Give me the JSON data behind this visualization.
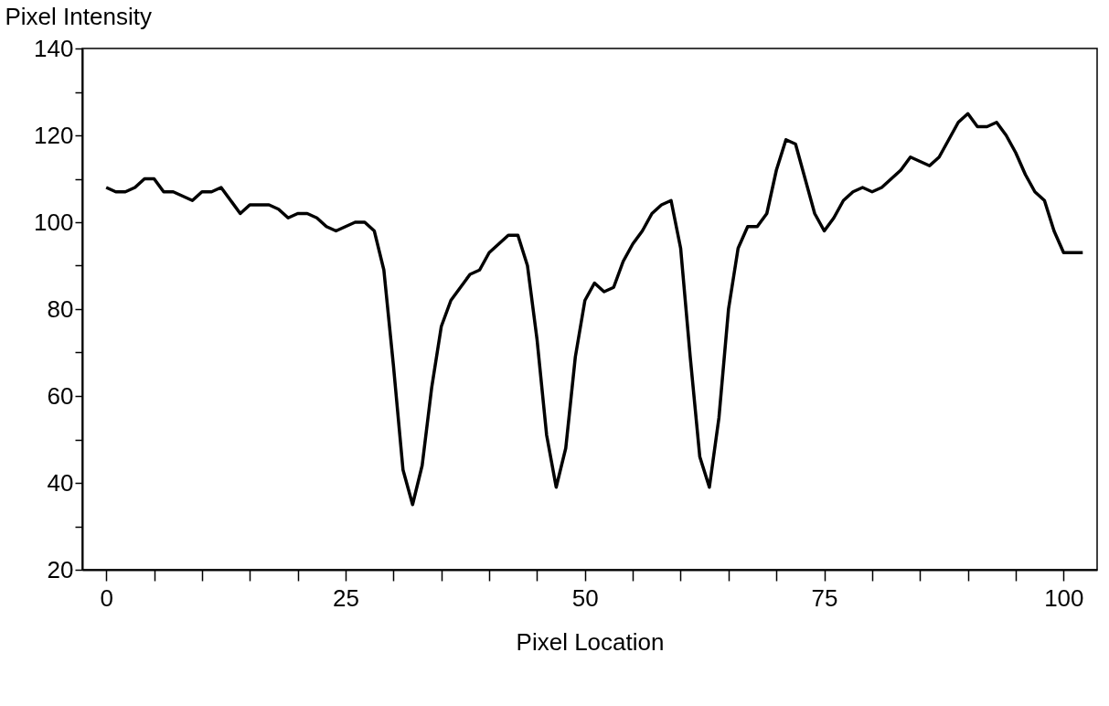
{
  "chart_data": {
    "type": "line",
    "xlabel": "Pixel Location",
    "ylabel": "Pixel Intensity",
    "x": [
      0,
      1,
      2,
      3,
      4,
      5,
      6,
      7,
      8,
      9,
      10,
      11,
      12,
      13,
      14,
      15,
      16,
      17,
      18,
      19,
      20,
      21,
      22,
      23,
      24,
      25,
      26,
      27,
      28,
      29,
      30,
      31,
      32,
      33,
      34,
      35,
      36,
      37,
      38,
      39,
      40,
      41,
      42,
      43,
      44,
      45,
      46,
      47,
      48,
      49,
      50,
      51,
      52,
      53,
      54,
      55,
      56,
      57,
      58,
      59,
      60,
      61,
      62,
      63,
      64,
      65,
      66,
      67,
      68,
      69,
      70,
      71,
      72,
      73,
      74,
      75,
      76,
      77,
      78,
      79,
      80,
      81,
      82,
      83,
      84,
      85,
      86,
      87,
      88,
      89,
      90,
      91,
      92,
      93,
      94,
      95,
      96,
      97,
      98,
      99,
      100,
      101,
      102
    ],
    "series": [
      {
        "color": "#000000",
        "values": [
          108,
          107,
          107,
          108,
          110,
          110,
          107,
          107,
          106,
          105,
          107,
          107,
          108,
          105,
          102,
          104,
          104,
          104,
          103,
          101,
          102,
          102,
          101,
          99,
          98,
          99,
          100,
          100,
          98,
          89,
          67,
          43,
          35,
          44,
          62,
          76,
          82,
          85,
          88,
          89,
          93,
          95,
          97,
          97,
          90,
          73,
          51,
          39,
          48,
          69,
          82,
          86,
          84,
          85,
          91,
          95,
          98,
          102,
          104,
          105,
          94,
          69,
          46,
          39,
          55,
          80,
          94,
          99,
          99,
          102,
          112,
          119,
          118,
          110,
          102,
          98,
          101,
          105,
          107,
          108,
          107,
          108,
          110,
          112,
          115,
          114,
          113,
          115,
          119,
          123,
          125,
          122,
          122,
          123,
          120,
          116,
          111,
          107,
          105,
          98,
          93,
          93,
          93
        ]
      }
    ],
    "xlim": [
      -2.5,
      103.5
    ],
    "ylim": [
      20,
      140
    ],
    "xticks": [
      0,
      {
        "value": 5,
        "label": null
      },
      {
        "value": 10,
        "label": null
      },
      {
        "value": 15,
        "label": null
      },
      {
        "value": 20,
        "label": null
      },
      25,
      {
        "value": 30,
        "label": null
      },
      {
        "value": 35,
        "label": null
      },
      {
        "value": 40,
        "label": null
      },
      {
        "value": 45,
        "label": null
      },
      50,
      {
        "value": 55,
        "label": null
      },
      {
        "value": 60,
        "label": null
      },
      {
        "value": 65,
        "label": null
      },
      {
        "value": 70,
        "label": null
      },
      75,
      {
        "value": 80,
        "label": null
      },
      {
        "value": 85,
        "label": null
      },
      {
        "value": 90,
        "label": null
      },
      {
        "value": 95,
        "label": null
      },
      100
    ],
    "yticks": [
      20,
      {
        "value": 30,
        "label": null
      },
      40,
      {
        "value": 50,
        "label": null
      },
      60,
      {
        "value": 70,
        "label": null
      },
      80,
      {
        "value": 90,
        "label": null
      },
      100,
      {
        "value": 110,
        "label": null
      },
      120,
      {
        "value": 130,
        "label": null
      },
      140
    ],
    "marker": "none",
    "line_style": "solid"
  }
}
